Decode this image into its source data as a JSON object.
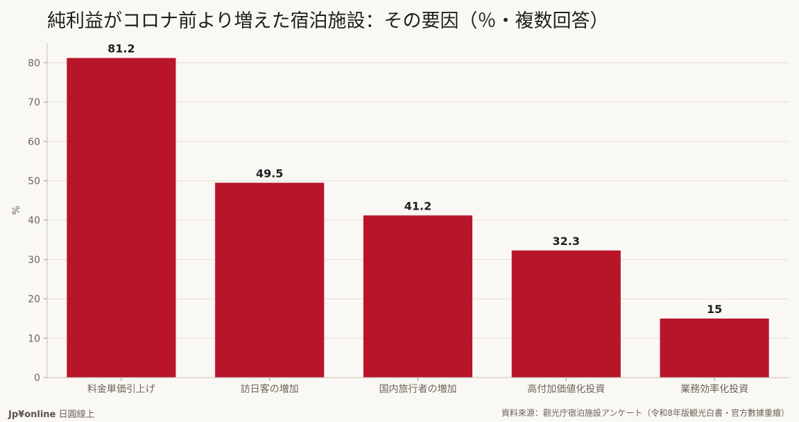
{
  "title": "純利益がコロナ前より増えた宿泊施設：その要因（％・複数回答）",
  "footer": {
    "brand": "Jp¥online",
    "brand_suffix": "日圓線上",
    "source": "資料來源：觀光庁宿泊施設アンケート（令和8年版観光白書・官方數據重繪）"
  },
  "colors": {
    "bar": "#b8152b",
    "background": "#faf8f4",
    "grid": "#e4ded3",
    "axis_text": "#6b6459"
  },
  "chart_data": {
    "type": "bar",
    "categories": [
      "料金単価引上げ",
      "訪日客の増加",
      "国内旅行者の増加",
      "高付加価値化投資",
      "業務効率化投資"
    ],
    "values": [
      81.2,
      49.5,
      41.2,
      32.3,
      15
    ],
    "value_labels": [
      "81.2",
      "49.5",
      "41.2",
      "32.3",
      "15"
    ],
    "ylabel": "%",
    "ylim": [
      0,
      85
    ],
    "yticks": [
      0,
      10,
      20,
      30,
      40,
      50,
      60,
      70,
      80
    ],
    "grid": true
  }
}
